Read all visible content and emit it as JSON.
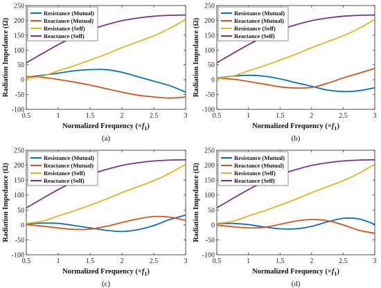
{
  "colors": {
    "resistance_mutual": "#0072BD",
    "reactance_mutual": "#D95319",
    "resistance_self": "#EDB120",
    "reactance_self": "#7E2F8E"
  },
  "chart_data": [
    {
      "type": "line",
      "caption": "(a)",
      "xlabel": "Normalized Frequency (×f1)",
      "xlabel_main": "Normalized Frequency (×",
      "xlabel_sym": "f",
      "xlabel_sub": "1",
      "xlabel_tail": ")",
      "ylabel": "Radiation Impedance (Ω)",
      "xlim": [
        0.5,
        3
      ],
      "ylim": [
        -100,
        250
      ],
      "xticks": [
        "0.5",
        "1",
        "1.5",
        "2",
        "2.5",
        "3"
      ],
      "yticks": [
        "-100",
        "-50",
        "0",
        "50",
        "100",
        "150",
        "200",
        "250"
      ],
      "legend_position": "top-left",
      "x": [
        0.5,
        0.75,
        1.0,
        1.25,
        1.5,
        1.75,
        2.0,
        2.25,
        2.5,
        2.75,
        3.0
      ],
      "series": [
        {
          "name": "Resistance (Mutual)",
          "color_key": "resistance_mutual",
          "values": [
            8,
            15,
            22,
            30,
            34,
            34,
            25,
            10,
            -5,
            -20,
            -42
          ]
        },
        {
          "name": "Reactance (Mutual)",
          "color_key": "reactance_mutual",
          "values": [
            10,
            8,
            1,
            -8,
            -18,
            -30,
            -42,
            -52,
            -58,
            -62,
            -58
          ]
        },
        {
          "name": "Resistance (Self)",
          "color_key": "resistance_self",
          "values": [
            5,
            12,
            30,
            47,
            66,
            86,
            108,
            128,
            148,
            173,
            203
          ]
        },
        {
          "name": "Reactance (Self)",
          "color_key": "reactance_self",
          "values": [
            57,
            88,
            118,
            145,
            168,
            185,
            199,
            208,
            214,
            217,
            218
          ]
        }
      ]
    },
    {
      "type": "line",
      "caption": "(b)",
      "xlabel": "Normalized Frequency (×f1)",
      "xlabel_main": "Normalized Frequency (×",
      "xlabel_sym": "f",
      "xlabel_sub": "1",
      "xlabel_tail": ")",
      "ylabel": "Radiation Impedance (Ω)",
      "xlim": [
        0.5,
        3
      ],
      "ylim": [
        -100,
        250
      ],
      "xticks": [
        "0.5",
        "1",
        "1.5",
        "2",
        "2.5",
        "3"
      ],
      "yticks": [
        "-100",
        "-50",
        "0",
        "50",
        "100",
        "150",
        "200",
        "250"
      ],
      "legend_position": "top-left",
      "x": [
        0.5,
        0.75,
        1.0,
        1.25,
        1.5,
        1.75,
        2.0,
        2.25,
        2.5,
        2.75,
        3.0
      ],
      "series": [
        {
          "name": "Resistance (Mutual)",
          "color_key": "resistance_mutual",
          "values": [
            6,
            12,
            15,
            12,
            3,
            -10,
            -22,
            -35,
            -40,
            -37,
            -27
          ]
        },
        {
          "name": "Reactance (Mutual)",
          "color_key": "reactance_mutual",
          "values": [
            5,
            2,
            -6,
            -15,
            -24,
            -28,
            -26,
            -12,
            6,
            22,
            38
          ]
        },
        {
          "name": "Resistance (Self)",
          "color_key": "resistance_self",
          "values": [
            5,
            12,
            30,
            47,
            66,
            86,
            108,
            128,
            148,
            173,
            203
          ]
        },
        {
          "name": "Reactance (Self)",
          "color_key": "reactance_self",
          "values": [
            57,
            88,
            118,
            145,
            168,
            185,
            199,
            208,
            214,
            217,
            218
          ]
        }
      ]
    },
    {
      "type": "line",
      "caption": "(c)",
      "xlabel": "Normalized Frequency (×f1)",
      "xlabel_main": "Normalized Frequency (×",
      "xlabel_sym": "f",
      "xlabel_sub": "1",
      "xlabel_tail": ")",
      "ylabel": "Radiation Impedance (Ω)",
      "xlim": [
        0.5,
        3
      ],
      "ylim": [
        -100,
        250
      ],
      "xticks": [
        "0.5",
        "1",
        "1.5",
        "2",
        "2.5",
        "3"
      ],
      "yticks": [
        "-100",
        "-50",
        "0",
        "50",
        "100",
        "150",
        "200",
        "250"
      ],
      "legend_position": "top-left",
      "x": [
        0.5,
        0.75,
        1.0,
        1.25,
        1.5,
        1.75,
        2.0,
        2.25,
        2.5,
        2.75,
        3.0
      ],
      "series": [
        {
          "name": "Resistance (Mutual)",
          "color_key": "resistance_mutual",
          "values": [
            3,
            6,
            5,
            -2,
            -10,
            -18,
            -22,
            -16,
            -2,
            18,
            33
          ]
        },
        {
          "name": "Reactance (Mutual)",
          "color_key": "reactance_mutual",
          "values": [
            1,
            -4,
            -10,
            -15,
            -14,
            -5,
            8,
            20,
            28,
            26,
            15
          ]
        },
        {
          "name": "Resistance (Self)",
          "color_key": "resistance_self",
          "values": [
            5,
            12,
            30,
            47,
            66,
            86,
            108,
            128,
            148,
            173,
            203
          ]
        },
        {
          "name": "Reactance (Self)",
          "color_key": "reactance_self",
          "values": [
            57,
            88,
            118,
            145,
            168,
            185,
            199,
            208,
            214,
            217,
            218
          ]
        }
      ]
    },
    {
      "type": "line",
      "caption": "(d)",
      "xlabel": "Normalized Frequency (×f1)",
      "xlabel_main": "Normalized Frequency (×",
      "xlabel_sym": "f",
      "xlabel_sub": "1",
      "xlabel_tail": ")",
      "ylabel": "Radiation Impedance (Ω)",
      "xlim": [
        0.5,
        3
      ],
      "ylim": [
        -100,
        250
      ],
      "xticks": [
        "0.5",
        "1",
        "1.5",
        "2",
        "2.5",
        "3"
      ],
      "yticks": [
        "-100",
        "-50",
        "0",
        "50",
        "100",
        "150",
        "200",
        "250"
      ],
      "legend_position": "top-left",
      "x": [
        0.5,
        0.75,
        1.0,
        1.25,
        1.5,
        1.75,
        2.0,
        2.25,
        2.5,
        2.75,
        3.0
      ],
      "series": [
        {
          "name": "Resistance (Mutual)",
          "color_key": "resistance_mutual",
          "values": [
            4,
            5,
            1,
            -7,
            -13,
            -13,
            -5,
            10,
            22,
            20,
            2
          ]
        },
        {
          "name": "Reactance (Mutual)",
          "color_key": "reactance_mutual",
          "values": [
            -1,
            -6,
            -10,
            -8,
            2,
            13,
            18,
            14,
            0,
            -18,
            -28
          ]
        },
        {
          "name": "Resistance (Self)",
          "color_key": "resistance_self",
          "values": [
            5,
            12,
            30,
            47,
            66,
            86,
            108,
            128,
            148,
            173,
            203
          ]
        },
        {
          "name": "Reactance (Self)",
          "color_key": "reactance_self",
          "values": [
            57,
            88,
            118,
            145,
            168,
            185,
            199,
            208,
            214,
            217,
            218
          ]
        }
      ]
    }
  ]
}
